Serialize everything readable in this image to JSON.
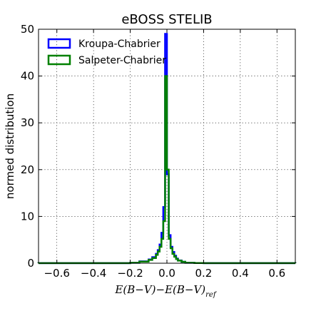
{
  "chart_data": {
    "type": "histogram-step",
    "title": "eBOSS STELIB",
    "xlabel": "E(B−V)−E(B−V)",
    "xlabel_subscript": "ref",
    "ylabel": "normed distribution",
    "xlim": [
      -0.7,
      0.7
    ],
    "ylim": [
      0,
      50
    ],
    "xticks": [
      -0.6,
      -0.4,
      -0.2,
      0.0,
      0.2,
      0.4,
      0.6
    ],
    "xtick_labels": [
      "−0.6",
      "−0.4",
      "−0.2",
      "0.0",
      "0.2",
      "0.4",
      "0.6"
    ],
    "yticks": [
      0,
      10,
      20,
      30,
      40,
      50
    ],
    "ytick_labels": [
      "0",
      "10",
      "20",
      "30",
      "40",
      "50"
    ],
    "grid": true,
    "legend_position": "top-left",
    "bin_edges": [
      -0.7,
      -0.2,
      -0.15,
      -0.1,
      -0.08,
      -0.06,
      -0.05,
      -0.04,
      -0.03,
      -0.02,
      -0.01,
      0.0,
      0.01,
      0.02,
      0.03,
      0.04,
      0.05,
      0.06,
      0.08,
      0.1,
      0.15,
      0.2,
      0.7
    ],
    "series": [
      {
        "name": "Kroupa-Chabrier",
        "color": "#0000ff",
        "values": [
          0.02,
          0.1,
          0.4,
          0.8,
          1.3,
          2.0,
          2.8,
          4.0,
          6.5,
          12.0,
          49.0,
          19.0,
          6.0,
          3.5,
          2.4,
          1.6,
          1.0,
          0.6,
          0.3,
          0.1,
          0.03,
          0.01
        ]
      },
      {
        "name": "Salpeter-Chabrier",
        "color": "#008000",
        "values": [
          0.02,
          0.1,
          0.35,
          0.7,
          1.1,
          1.8,
          2.5,
          3.5,
          5.2,
          9.0,
          40.0,
          20.0,
          5.2,
          3.2,
          2.0,
          1.4,
          0.9,
          0.55,
          0.3,
          0.1,
          0.03,
          0.01
        ]
      }
    ]
  }
}
